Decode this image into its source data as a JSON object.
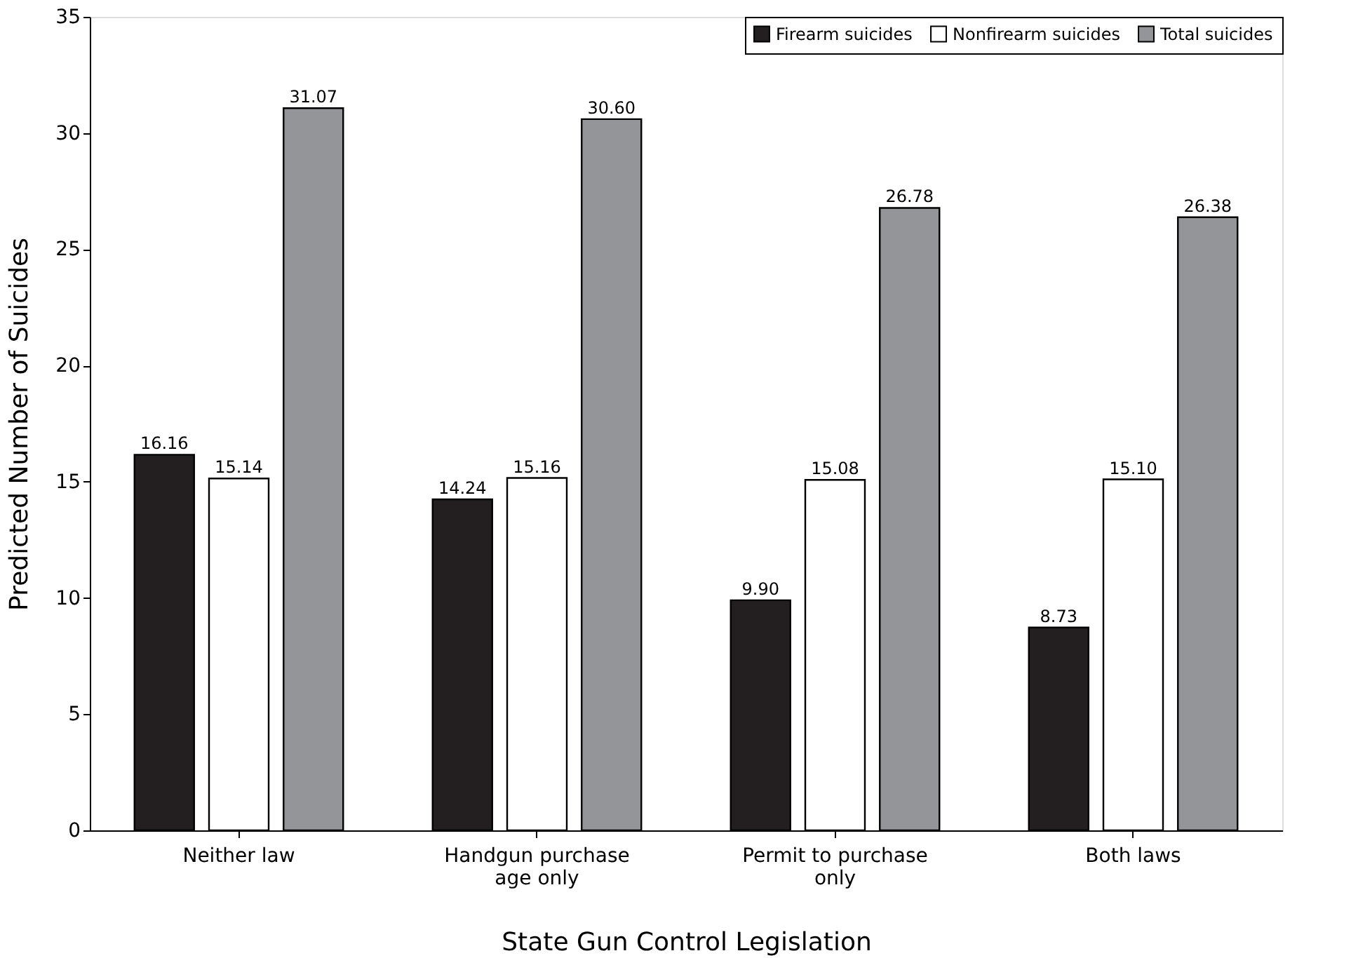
{
  "chart_data": {
    "type": "bar",
    "xlabel": "State Gun Control Legislation",
    "ylabel": "Predicted Number of Suicides",
    "categories": [
      "Neither law",
      "Handgun purchase age only",
      "Permit to purchase only",
      "Both laws"
    ],
    "series": [
      {
        "name": "Firearm suicides",
        "color": "#231f20",
        "values": [
          16.16,
          14.24,
          9.9,
          8.73
        ],
        "value_labels": [
          "16.16",
          "14.24",
          "9.90",
          "8.73"
        ]
      },
      {
        "name": "Nonfirearm suicides",
        "color": "#ffffff",
        "values": [
          15.14,
          15.16,
          15.08,
          15.1
        ],
        "value_labels": [
          "15.14",
          "15.16",
          "15.08",
          "15.10"
        ]
      },
      {
        "name": "Total suicides",
        "color": "#939598",
        "values": [
          31.07,
          30.6,
          26.78,
          26.38
        ],
        "value_labels": [
          "31.07",
          "30.60",
          "26.78",
          "26.38"
        ]
      }
    ],
    "ylim": [
      0,
      35
    ],
    "yticks": [
      0,
      5,
      10,
      15,
      20,
      25,
      30,
      35
    ],
    "grid": false,
    "legend": "top right"
  }
}
